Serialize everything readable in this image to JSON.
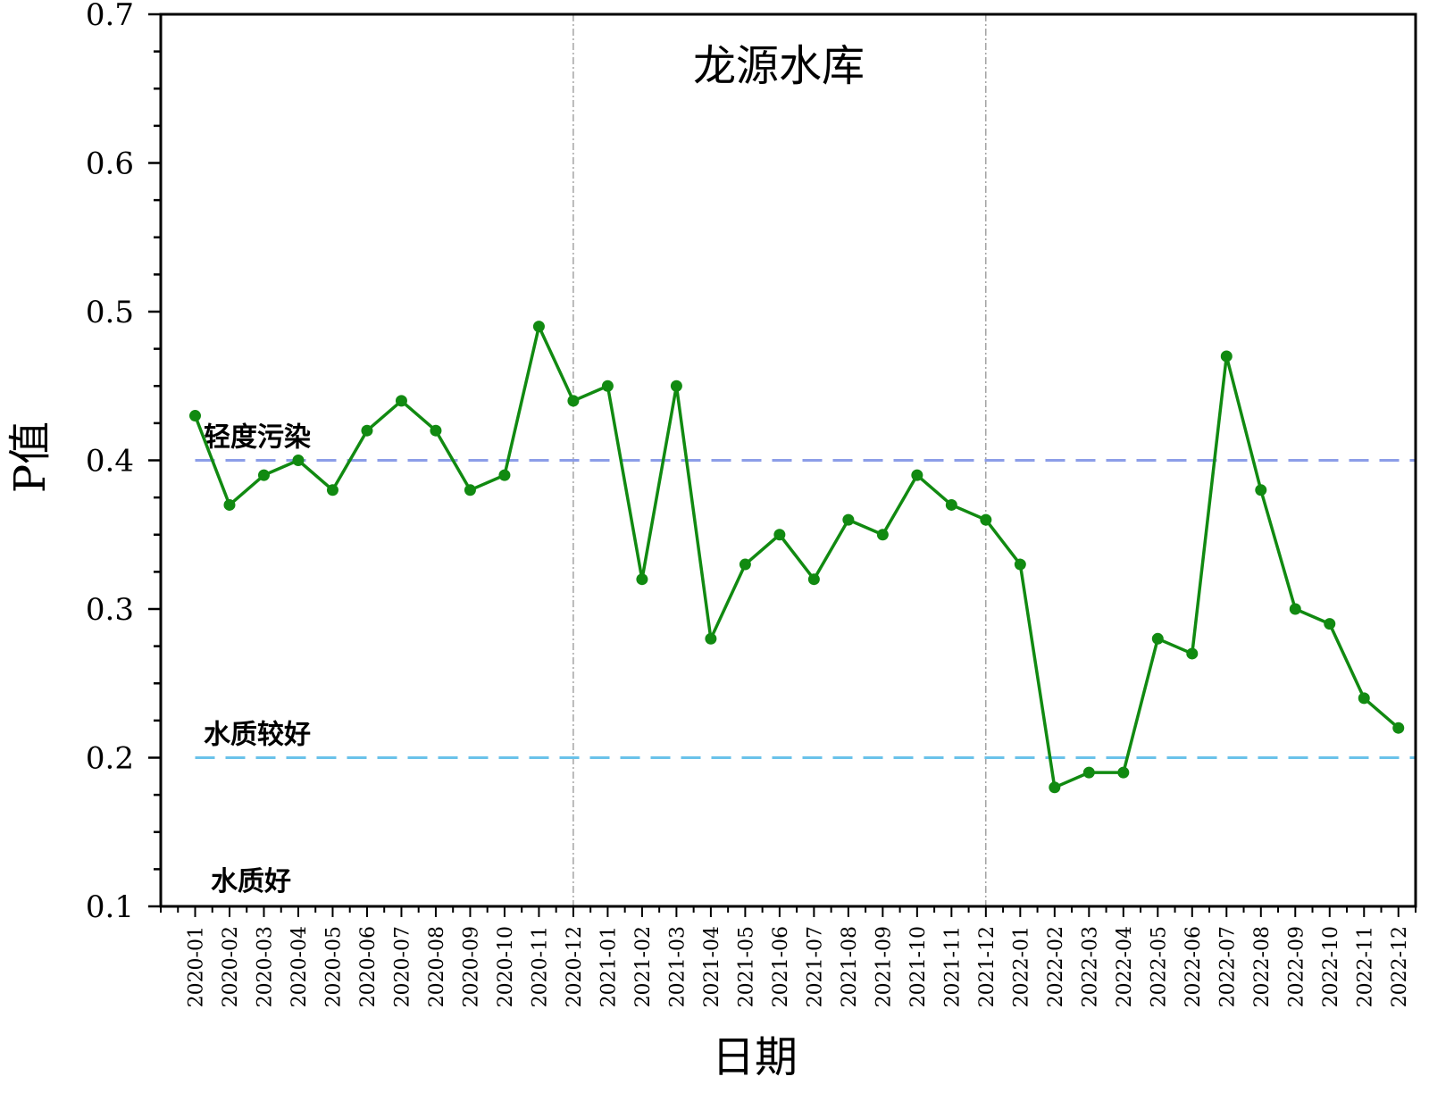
{
  "chart_data": {
    "type": "line",
    "title": "龙源水库",
    "xlabel": "日期",
    "ylabel": "P值",
    "ylim": [
      0.1,
      0.7
    ],
    "yticks": [
      "0.1",
      "0.2",
      "0.3",
      "0.4",
      "0.5",
      "0.6",
      "0.7"
    ],
    "categories": [
      "2020-01",
      "2020-02",
      "2020-03",
      "2020-04",
      "2020-05",
      "2020-06",
      "2020-07",
      "2020-08",
      "2020-09",
      "2020-10",
      "2020-11",
      "2020-12",
      "2021-01",
      "2021-02",
      "2021-03",
      "2021-04",
      "2021-05",
      "2021-06",
      "2021-07",
      "2021-08",
      "2021-09",
      "2021-10",
      "2021-11",
      "2021-12",
      "2022-01",
      "2022-02",
      "2022-03",
      "2022-04",
      "2022-05",
      "2022-06",
      "2022-07",
      "2022-08",
      "2022-09",
      "2022-10",
      "2022-11",
      "2022-12"
    ],
    "series": [
      {
        "color": "#118a11",
        "values": [
          0.43,
          0.37,
          0.39,
          0.4,
          0.38,
          0.42,
          0.44,
          0.42,
          0.38,
          0.39,
          0.49,
          0.44,
          0.45,
          0.32,
          0.45,
          0.28,
          0.33,
          0.35,
          0.32,
          0.36,
          0.35,
          0.39,
          0.37,
          0.36,
          0.33,
          0.18,
          0.19,
          0.19,
          0.28,
          0.27,
          0.47,
          0.38,
          0.3,
          0.29,
          0.24,
          0.22
        ]
      }
    ],
    "reference_lines": [
      {
        "value": 0.4,
        "label": "轻度污染",
        "color": "#8c9de8"
      },
      {
        "value": 0.2,
        "label": "水质较好",
        "color": "#6ac2ea"
      }
    ],
    "region_labels": [
      {
        "value": 0.1,
        "label": "水质好"
      }
    ],
    "year_dividers": [
      "2020-12",
      "2021-12"
    ],
    "grid": false
  }
}
